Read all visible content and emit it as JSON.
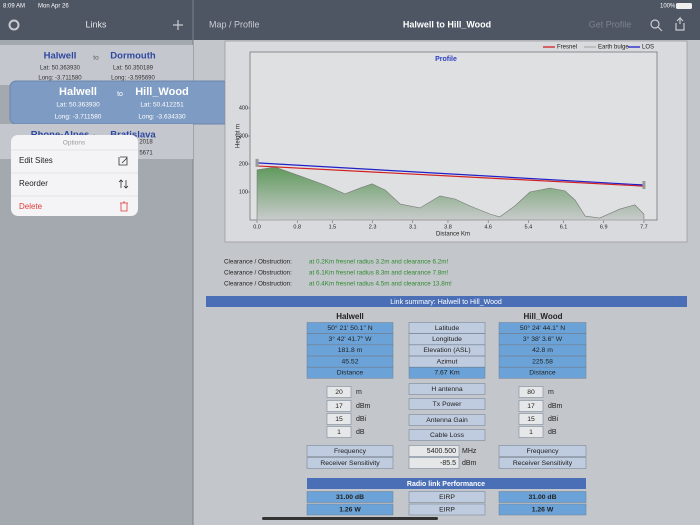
{
  "status_bar": {
    "time": "8:09 AM",
    "date": "Mon Apr 26",
    "battery": "100%"
  },
  "sidebar": {
    "title": "Links",
    "links": [
      {
        "from": "Halwell",
        "to_word": "to",
        "to": "Dormouth",
        "from_lat": "Lat: 50.363930",
        "from_long": "Long: -3.711580",
        "to_lat": "Lat: 50.350189",
        "to_long": "Long: -3.595690"
      },
      {
        "from": "Halwell",
        "to_word": "to",
        "to": "Hill_Wood",
        "from_lat": "Lat: 50.363930",
        "from_long": "Long: -3.711580",
        "to_lat": "Lat: 50.412251",
        "to_long": "Long: -3.634330"
      },
      {
        "from": "Rhone-Alpes",
        "to_word": "to",
        "to": "Bratislava",
        "to_lat": "2018",
        "to_long": "5671"
      }
    ]
  },
  "options_menu": {
    "title": "Options",
    "items": [
      "Edit Sites",
      "Reorder",
      "Delete"
    ]
  },
  "navbar": {
    "back": "Map / Profile",
    "title": "Halwell to Hill_Wood",
    "action": "Get Profile"
  },
  "chart_data": {
    "type": "line",
    "title": "Profile",
    "x_label": "Distance Km",
    "y_label": "Height m",
    "xlim": [
      -0.14,
      7.96
    ],
    "ylim": [
      0,
      600
    ],
    "xticks": [
      {
        "value": 0,
        "label": "0.0"
      },
      {
        "value": 0.8,
        "label": "0.8"
      },
      {
        "value": 1.5,
        "label": "1.5"
      },
      {
        "value": 2.3,
        "label": "2.3"
      },
      {
        "value": 3.1,
        "label": "3.1"
      },
      {
        "value": 3.8,
        "label": "3.8"
      },
      {
        "value": 4.6,
        "label": "4.6"
      },
      {
        "value": 5.4,
        "label": "5.4"
      },
      {
        "value": 6.1,
        "label": "6.1"
      },
      {
        "value": 6.9,
        "label": "6.9"
      },
      {
        "value": 7.7,
        "label": "7.7"
      }
    ],
    "yticks": [
      100,
      200,
      300,
      400
    ],
    "terrain": {
      "color": "#5f9a5c",
      "x": [
        0,
        0.36,
        0.86,
        1.35,
        1.75,
        2.05,
        2.29,
        2.55,
        2.85,
        3.24,
        3.64,
        3.94,
        4.24,
        4.64,
        4.83,
        5.13,
        5.43,
        5.83,
        6.13,
        6.33,
        6.53,
        6.82,
        7.22,
        7.52,
        7.7
      ],
      "values": [
        179,
        189,
        157,
        125,
        93,
        114,
        129,
        107,
        57,
        43,
        86,
        75,
        50,
        21,
        11,
        50,
        100,
        114,
        104,
        71,
        14,
        7,
        39,
        54,
        21
      ]
    },
    "series": [
      {
        "name": "Fresnel",
        "color": "#d42020",
        "x": [
          0,
          7.7
        ],
        "values": [
          193,
          121
        ]
      },
      {
        "name": "Earth bulge",
        "color": "#b0b0b0",
        "x": [
          0,
          3.85,
          7.7
        ],
        "values": [
          0,
          1.2,
          0
        ]
      },
      {
        "name": "LOS",
        "color": "#2020c8",
        "x": [
          0,
          7.7
        ],
        "values": [
          204,
          125
        ]
      }
    ]
  },
  "clearance": [
    {
      "label": "Clearance / Obstruction:",
      "text": "at 0.2Km  fresnel radius 3.2m and clearance 6.2m!"
    },
    {
      "label": "Clearance / Obstruction:",
      "text": "at 6.1Km  fresnel radius 8.3m and clearance 7.8m!"
    },
    {
      "label": "Clearance / Obstruction:",
      "text": "at 0.4Km  fresnel radius 4.5m and clearance 13.8m!"
    }
  ],
  "link_summary": {
    "title": "Link summary: Halwell to Hill_Wood",
    "site_a": "Halwell",
    "site_b": "Hill_Wood",
    "rows": [
      {
        "a": "50° 21' 50.1\" N",
        "label": "Latitude",
        "b": "50° 24' 44.1\" N"
      },
      {
        "a": "3° 42' 41.7\" W",
        "label": "Longitude",
        "b": "3° 38' 3.6\" W"
      },
      {
        "a": "181.8 m",
        "label": "Elevation (ASL)",
        "b": "42.8 m"
      },
      {
        "a": "45.52",
        "label": "Azimut",
        "b": "225.58"
      },
      {
        "a": "Distance",
        "label": "7.67 Km",
        "b": "Distance"
      }
    ],
    "antenna_rows": [
      {
        "a": "20",
        "a_unit": "m",
        "label": "H antenna",
        "b": "80",
        "b_unit": "m"
      },
      {
        "a": "17",
        "a_unit": "dBm",
        "label": "Tx Power",
        "b": "17",
        "b_unit": "dBm"
      },
      {
        "a": "15",
        "a_unit": "dBi",
        "label": "Antenna Gain",
        "b": "15",
        "b_unit": "dBi"
      },
      {
        "a": "1",
        "a_unit": "dB",
        "label": "Cable Loss",
        "b": "1",
        "b_unit": "dB"
      }
    ],
    "radio_rows": [
      {
        "a": "Frequency",
        "value": "5400.500",
        "unit": "MHz",
        "b": "Frequency"
      },
      {
        "a": "Receiver Sensitivity",
        "value": "-85.5",
        "unit": "dBm",
        "b": "Receiver Sensitivity"
      }
    ],
    "performance": {
      "title": "Radio link Performance",
      "rows": [
        {
          "a": "31.00 dB",
          "label": "EIRP",
          "b": "31.00 dB"
        },
        {
          "a": "1.26 W",
          "label": "EIRP",
          "b": "1.26 W"
        }
      ]
    }
  }
}
